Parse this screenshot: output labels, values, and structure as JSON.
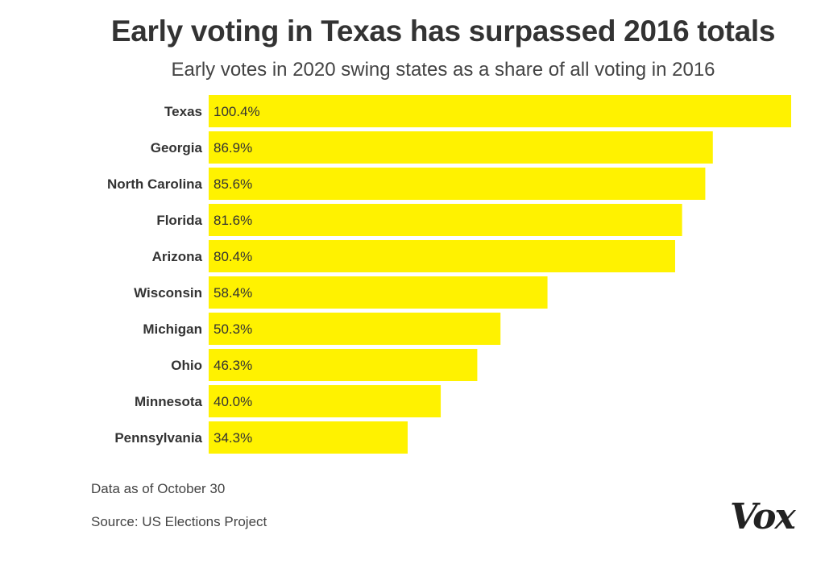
{
  "header": {
    "title": "Early voting in Texas has surpassed 2016 totals",
    "subtitle": "Early votes in 2020 swing states as a share of all voting in 2016"
  },
  "chart_data": {
    "type": "bar",
    "orientation": "horizontal",
    "title": "Early voting in Texas has surpassed 2016 totals",
    "subtitle": "Early votes in 2020 swing states as a share of all voting in 2016",
    "categories": [
      "Texas",
      "Georgia",
      "North Carolina",
      "Florida",
      "Arizona",
      "Wisconsin",
      "Michigan",
      "Ohio",
      "Minnesota",
      "Pennsylvania"
    ],
    "values": [
      100.4,
      86.9,
      85.6,
      81.6,
      80.4,
      58.4,
      50.3,
      46.3,
      40.0,
      34.3
    ],
    "value_labels": [
      "100.4%",
      "86.9%",
      "85.6%",
      "81.6%",
      "80.4%",
      "58.4%",
      "50.3%",
      "46.3%",
      "40.0%",
      "34.3%"
    ],
    "unit": "%",
    "xlim": [
      0,
      100.4
    ],
    "grid": false,
    "legend": "none",
    "bar_color": "#FFF200"
  },
  "footer": {
    "note": "Data as of October 30",
    "source": "Source: US Elections Project",
    "logo": "Vox"
  }
}
